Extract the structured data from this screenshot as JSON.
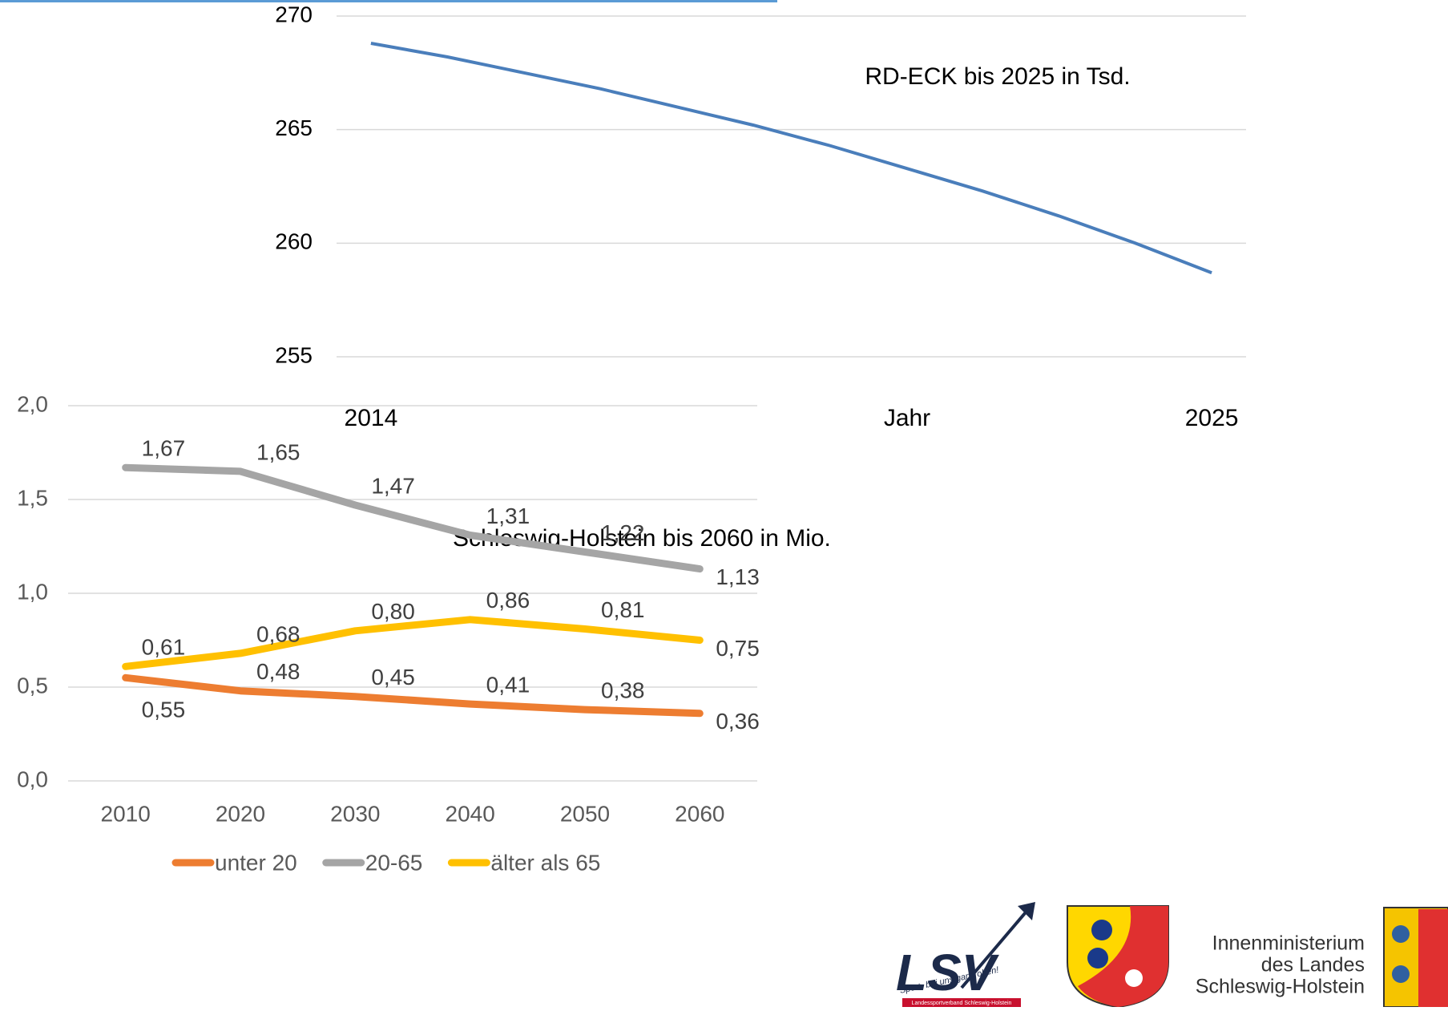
{
  "chart_data": [
    {
      "type": "line",
      "title": "RD-ECK bis 2025 in Tsd.",
      "x_label": "Jahr",
      "x": [
        2014,
        2015,
        2016,
        2017,
        2018,
        2019,
        2020,
        2021,
        2022,
        2023,
        2024,
        2025
      ],
      "values": [
        268.8,
        268.2,
        267.5,
        266.8,
        266.0,
        265.2,
        264.3,
        263.3,
        262.3,
        261.2,
        260.0,
        258.7
      ],
      "color": "#4a7ebb",
      "xlim": [
        2013.55,
        2025.45
      ],
      "xticks": [
        2014,
        2025
      ],
      "ylim": [
        255,
        270
      ],
      "yticks": [
        255,
        260,
        265,
        270
      ],
      "grid": true
    },
    {
      "type": "line",
      "title": "Schleswig-Holstein bis 2060 in Mio.",
      "categories": [
        "2010",
        "2020",
        "2030",
        "2040",
        "2050",
        "2060"
      ],
      "series": [
        {
          "name": "unter 20",
          "color": "#ed7d31",
          "values": [
            0.55,
            0.48,
            0.45,
            0.41,
            0.38,
            0.36
          ],
          "value_labels": [
            "0,55",
            "0,48",
            "0,45",
            "0,41",
            "0,38",
            "0,36"
          ]
        },
        {
          "name": "20-65",
          "color": "#a5a5a5",
          "values": [
            1.67,
            1.65,
            1.47,
            1.31,
            1.22,
            1.13
          ],
          "value_labels": [
            "1,67",
            "1,65",
            "1,47",
            "1,31",
            "1,22",
            "1,13"
          ]
        },
        {
          "name": "älter als 65",
          "color": "#ffc000",
          "values": [
            0.61,
            0.68,
            0.8,
            0.86,
            0.81,
            0.75
          ],
          "value_labels": [
            "0,61",
            "0,68",
            "0,80",
            "0,86",
            "0,81",
            "0,75"
          ]
        }
      ],
      "ylim": [
        0,
        2
      ],
      "yticks": [
        {
          "value": 0,
          "label": "0,0"
        },
        {
          "value": 0.5,
          "label": "0,5"
        },
        {
          "value": 1,
          "label": "1,0"
        },
        {
          "value": 1.5,
          "label": "1,5"
        },
        {
          "value": 2,
          "label": "2,0"
        }
      ],
      "grid": true,
      "legend": "bottom"
    }
  ],
  "logos": {
    "lsv": "LSV",
    "lsv_slogan": "Sport- bei uns ganz oben!",
    "lsv_band": "Landessportverband Schleswig-Holstein",
    "ministry": [
      "Innenministerium",
      "des Landes",
      "Schleswig-Holstein"
    ]
  }
}
